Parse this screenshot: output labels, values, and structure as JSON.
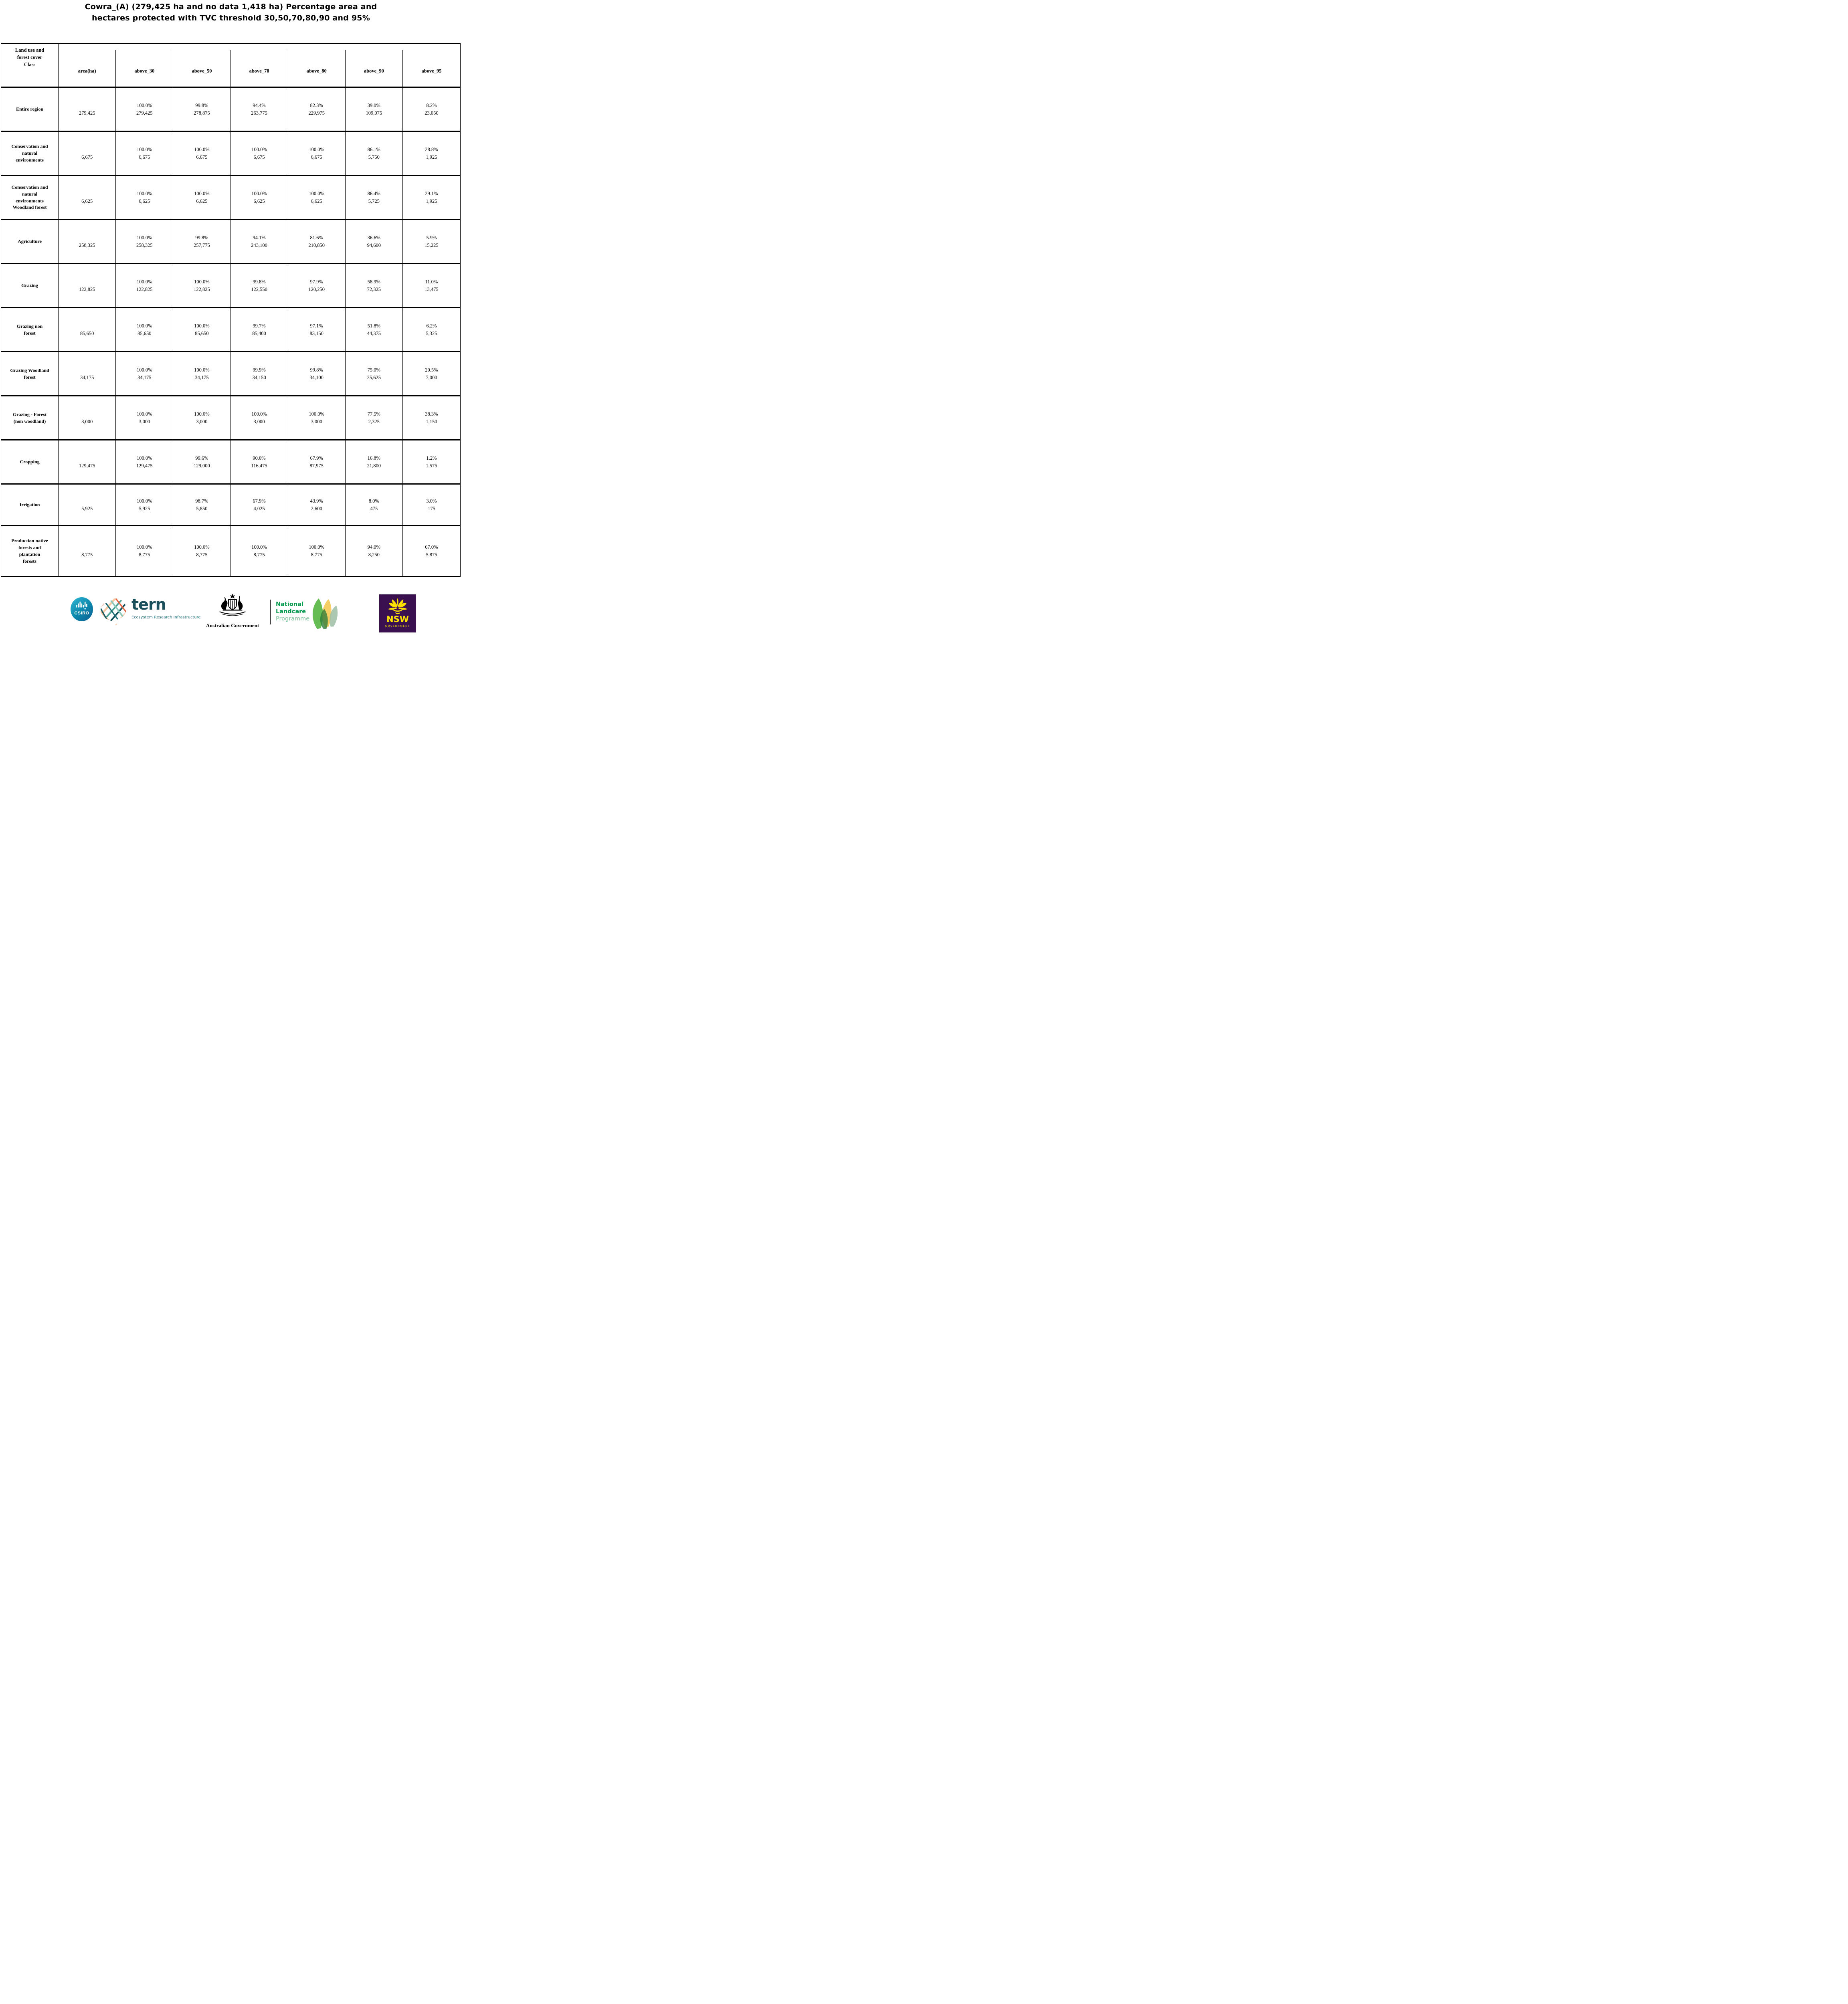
{
  "title": "Cowra_(A) (279,425 ha and no data 1,418 ha) Percentage area and\nhectares protected with TVC threshold 30,50,70,80,90 and 95%",
  "table": {
    "columns": [
      "Land use and\nforest cover\nClass",
      "area(ha)",
      "above_30",
      "above_50",
      "above_70",
      "above_80",
      "above_90",
      "above_95"
    ],
    "rows": [
      {
        "label": "Entire region",
        "area": "279,425",
        "values": [
          {
            "pct": "100.0%",
            "ha": "279,425"
          },
          {
            "pct": "99.8%",
            "ha": "278,875"
          },
          {
            "pct": "94.4%",
            "ha": "263,775"
          },
          {
            "pct": "82.3%",
            "ha": "229,975"
          },
          {
            "pct": "39.0%",
            "ha": "109,075"
          },
          {
            "pct": "8.2%",
            "ha": "23,050"
          }
        ]
      },
      {
        "label": "Conservation and\nnatural\nenvironments",
        "area": "6,675",
        "values": [
          {
            "pct": "100.0%",
            "ha": "6,675"
          },
          {
            "pct": "100.0%",
            "ha": "6,675"
          },
          {
            "pct": "100.0%",
            "ha": "6,675"
          },
          {
            "pct": "100.0%",
            "ha": "6,675"
          },
          {
            "pct": "86.1%",
            "ha": "5,750"
          },
          {
            "pct": "28.8%",
            "ha": "1,925"
          }
        ]
      },
      {
        "label": "Conservation and\nnatural\nenvironments\nWoodland forest",
        "area": "6,625",
        "values": [
          {
            "pct": "100.0%",
            "ha": "6,625"
          },
          {
            "pct": "100.0%",
            "ha": "6,625"
          },
          {
            "pct": "100.0%",
            "ha": "6,625"
          },
          {
            "pct": "100.0%",
            "ha": "6,625"
          },
          {
            "pct": "86.4%",
            "ha": "5,725"
          },
          {
            "pct": "29.1%",
            "ha": "1,925"
          }
        ]
      },
      {
        "label": "Agriculture",
        "area": "258,325",
        "values": [
          {
            "pct": "100.0%",
            "ha": "258,325"
          },
          {
            "pct": "99.8%",
            "ha": "257,775"
          },
          {
            "pct": "94.1%",
            "ha": "243,100"
          },
          {
            "pct": "81.6%",
            "ha": "210,850"
          },
          {
            "pct": "36.6%",
            "ha": "94,600"
          },
          {
            "pct": "5.9%",
            "ha": "15,225"
          }
        ]
      },
      {
        "label": "Grazing",
        "area": "122,825",
        "values": [
          {
            "pct": "100.0%",
            "ha": "122,825"
          },
          {
            "pct": "100.0%",
            "ha": "122,825"
          },
          {
            "pct": "99.8%",
            "ha": "122,550"
          },
          {
            "pct": "97.9%",
            "ha": "120,250"
          },
          {
            "pct": "58.9%",
            "ha": "72,325"
          },
          {
            "pct": "11.0%",
            "ha": "13,475"
          }
        ]
      },
      {
        "label": "Grazing non\nforest",
        "area": "85,650",
        "values": [
          {
            "pct": "100.0%",
            "ha": "85,650"
          },
          {
            "pct": "100.0%",
            "ha": "85,650"
          },
          {
            "pct": "99.7%",
            "ha": "85,400"
          },
          {
            "pct": "97.1%",
            "ha": "83,150"
          },
          {
            "pct": "51.8%",
            "ha": "44,375"
          },
          {
            "pct": "6.2%",
            "ha": "5,325"
          }
        ]
      },
      {
        "label": "Grazing Woodland\nforest",
        "area": "34,175",
        "values": [
          {
            "pct": "100.0%",
            "ha": "34,175"
          },
          {
            "pct": "100.0%",
            "ha": "34,175"
          },
          {
            "pct": "99.9%",
            "ha": "34,150"
          },
          {
            "pct": "99.8%",
            "ha": "34,100"
          },
          {
            "pct": "75.0%",
            "ha": "25,625"
          },
          {
            "pct": "20.5%",
            "ha": "7,000"
          }
        ]
      },
      {
        "label": "Grazing - Forest\n(non woodland)",
        "area": "3,000",
        "values": [
          {
            "pct": "100.0%",
            "ha": "3,000"
          },
          {
            "pct": "100.0%",
            "ha": "3,000"
          },
          {
            "pct": "100.0%",
            "ha": "3,000"
          },
          {
            "pct": "100.0%",
            "ha": "3,000"
          },
          {
            "pct": "77.5%",
            "ha": "2,325"
          },
          {
            "pct": "38.3%",
            "ha": "1,150"
          }
        ]
      },
      {
        "label": "Cropping",
        "area": "129,475",
        "values": [
          {
            "pct": "100.0%",
            "ha": "129,475"
          },
          {
            "pct": "99.6%",
            "ha": "129,000"
          },
          {
            "pct": "90.0%",
            "ha": "116,475"
          },
          {
            "pct": "67.9%",
            "ha": "87,975"
          },
          {
            "pct": "16.8%",
            "ha": "21,800"
          },
          {
            "pct": "1.2%",
            "ha": "1,575"
          }
        ]
      },
      {
        "label": "Irrigation",
        "area": "5,925",
        "values": [
          {
            "pct": "100.0%",
            "ha": "5,925"
          },
          {
            "pct": "98.7%",
            "ha": "5,850"
          },
          {
            "pct": "67.9%",
            "ha": "4,025"
          },
          {
            "pct": "43.9%",
            "ha": "2,600"
          },
          {
            "pct": "8.0%",
            "ha": "475"
          },
          {
            "pct": "3.0%",
            "ha": "175"
          }
        ]
      },
      {
        "label": "Production native\nforests and\nplantation\nforests",
        "area": "8,775",
        "values": [
          {
            "pct": "100.0%",
            "ha": "8,775"
          },
          {
            "pct": "100.0%",
            "ha": "8,775"
          },
          {
            "pct": "100.0%",
            "ha": "8,775"
          },
          {
            "pct": "100.0%",
            "ha": "8,775"
          },
          {
            "pct": "94.0%",
            "ha": "8,250"
          },
          {
            "pct": "67.0%",
            "ha": "5,875"
          }
        ]
      }
    ]
  },
  "footer": {
    "csiro_label": "CSIRO",
    "tern_label": "tern",
    "tern_subtitle": "Ecosystem Research Infrastructure",
    "aus_gov_label": "Australian Government",
    "landcare_line1": "National",
    "landcare_line2": "Landcare",
    "landcare_line3": "Programme",
    "nsw_label": "NSW",
    "nsw_sublabel": "GOVERNMENT"
  },
  "colors": {
    "csiro_teal": "#0D86AC",
    "tern_teal": "#1A505C",
    "landcare_green": "#00984A",
    "landcare_light_green": "#7CC29A",
    "leaf_green": "#5CB849",
    "leaf_yellow": "#F2C33C",
    "nsw_purple": "#3A1051",
    "nsw_yellow": "#FFE100"
  }
}
